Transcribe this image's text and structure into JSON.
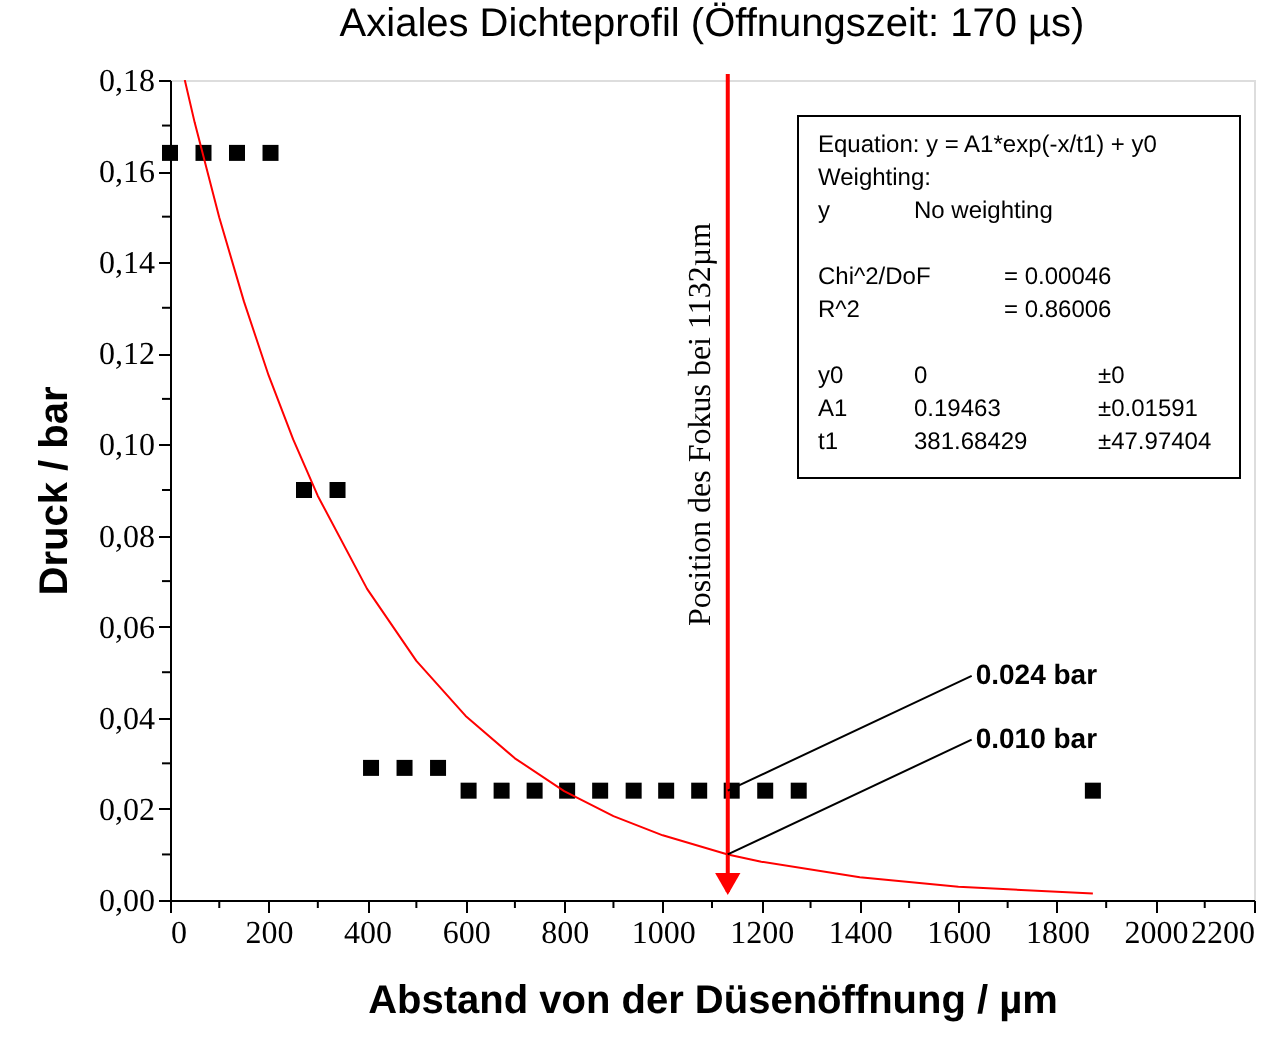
{
  "chart_data": {
    "type": "scatter",
    "title": "Axiales Dichteprofil (Öffnungszeit: 170 µs)",
    "xlabel": "Abstand von der Düsenöffnung / µm",
    "ylabel": "Druck / bar",
    "series": [
      {
        "color": "#000000",
        "marker": "square",
        "x": [
          0,
          68,
          136,
          204,
          272,
          340,
          408,
          476,
          544,
          606,
          673,
          740,
          806,
          873,
          941,
          1007,
          1074,
          1140,
          1208,
          1276,
          1873
        ],
        "values": [
          0.164,
          0.164,
          0.164,
          0.164,
          0.09,
          0.09,
          0.029,
          0.029,
          0.029,
          0.024,
          0.024,
          0.024,
          0.024,
          0.024,
          0.024,
          0.024,
          0.024,
          0.024,
          0.024,
          0.024,
          0.024
        ]
      },
      {
        "type": "line",
        "color": "#ff0000",
        "marker": "none",
        "line_style": "solid",
        "x": [
          30,
          50,
          100,
          150,
          200,
          250,
          300,
          400,
          500,
          600,
          700,
          800,
          900,
          1000,
          1132,
          1200,
          1400,
          1600,
          1873
        ],
        "values": [
          0.18,
          0.1707,
          0.1498,
          0.1314,
          0.1152,
          0.1011,
          0.0887,
          0.0683,
          0.0525,
          0.0404,
          0.0311,
          0.0239,
          0.0184,
          0.0142,
          0.01,
          0.0084,
          0.005,
          0.0029,
          0.0014
        ]
      }
    ],
    "xlim": [
      0,
      2200
    ],
    "ylim": [
      0,
      0.18
    ],
    "xticks": [
      0,
      {
        "value": 100,
        "label": null
      },
      200,
      {
        "value": 300,
        "label": null
      },
      400,
      {
        "value": 500,
        "label": null
      },
      600,
      {
        "value": 700,
        "label": null
      },
      800,
      {
        "value": 900,
        "label": null
      },
      1000,
      {
        "value": 1100,
        "label": null
      },
      1200,
      {
        "value": 1300,
        "label": null
      },
      1400,
      {
        "value": 1500,
        "label": null
      },
      1600,
      {
        "value": 1700,
        "label": null
      },
      1800,
      {
        "value": 1900,
        "label": null
      },
      2000,
      {
        "value": 2100,
        "label": null
      },
      2200
    ],
    "yticks": [
      {
        "value": 0,
        "label": "0,00"
      },
      {
        "value": 0.01,
        "label": null
      },
      {
        "value": 0.02,
        "label": "0,02"
      },
      {
        "value": 0.03,
        "label": null
      },
      {
        "value": 0.04,
        "label": "0,04"
      },
      {
        "value": 0.05,
        "label": null
      },
      {
        "value": 0.06,
        "label": "0,06"
      },
      {
        "value": 0.07,
        "label": null
      },
      {
        "value": 0.08,
        "label": "0,08"
      },
      {
        "value": 0.09,
        "label": null
      },
      {
        "value": 0.1,
        "label": "0,10"
      },
      {
        "value": 0.11,
        "label": null
      },
      {
        "value": 0.12,
        "label": "0,12"
      },
      {
        "value": 0.13,
        "label": null
      },
      {
        "value": 0.14,
        "label": "0,14"
      },
      {
        "value": 0.15,
        "label": null
      },
      {
        "value": 0.16,
        "label": "0,16"
      },
      {
        "value": 0.17,
        "label": null
      },
      {
        "value": 0.18,
        "label": "0,18"
      }
    ],
    "ref_lines": [
      {
        "axis": "x",
        "value": 1132,
        "label": "Position des Fokus bei 1132µm",
        "color": "#ff0000",
        "line_style": "solid"
      }
    ],
    "annotations": [
      "Equation: y = A1*exp(-x/t1) + y0",
      "Weighting:",
      "y\tNo weighting",
      "Chi^2/DoF\t\t= 0.00046",
      "R^2\t\t=  0.86006",
      "y0\t0\t\t±0",
      "A1\t0.19463\t\t±0.01591",
      "t1\t381.68429\t\t±47.97404",
      {
        "text": "0.024 bar",
        "x": 1132,
        "y": 0.024
      },
      {
        "text": "0.010 bar",
        "x": 1132,
        "y": 0.01
      }
    ],
    "grid": false
  }
}
